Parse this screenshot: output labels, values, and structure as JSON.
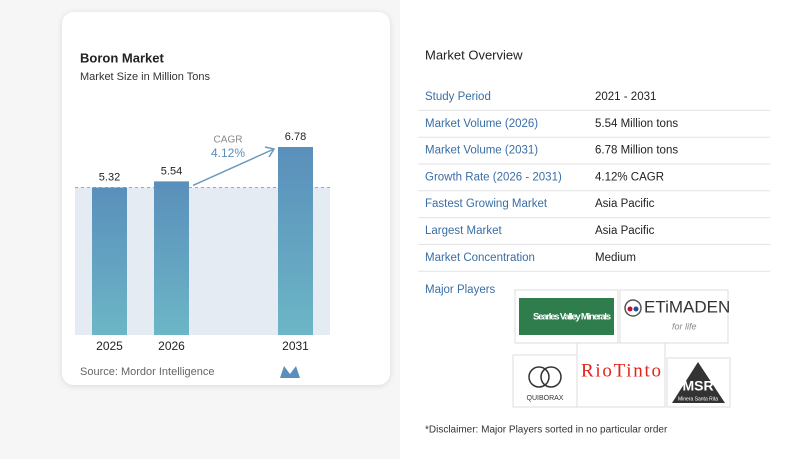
{
  "chart_data": {
    "type": "bar",
    "title": "Boron Market",
    "subtitle": "Market Size in Million Tons",
    "categories": [
      "2025",
      "2026",
      "2031"
    ],
    "values": [
      5.32,
      5.54,
      6.78
    ],
    "annotation": {
      "label": "CAGR",
      "value": "4.12%"
    },
    "source": "Source: Mordor Intelligence"
  },
  "overview": {
    "title": "Market Overview",
    "rows": [
      [
        "Study Period",
        "2021 - 2031"
      ],
      [
        "Market Volume (2026)",
        "5.54 Million tons"
      ],
      [
        "Market Volume (2031)",
        "6.78 Million tons"
      ],
      [
        "Growth Rate (2026 - 2031)",
        "4.12% CAGR"
      ],
      [
        "Fastest Growing Market",
        "Asia Pacific"
      ],
      [
        "Largest Market",
        "Asia Pacific"
      ],
      [
        "Market Concentration",
        "Medium"
      ]
    ],
    "major_players_label": "Major Players",
    "players": [
      {
        "name": "Searles Valley Minerals"
      },
      {
        "name": "ETiMADEN",
        "tagline": "for life"
      },
      {
        "name": "QUIBORAX"
      },
      {
        "name": "RioTinto"
      },
      {
        "name": "MSR",
        "tagline": "Minera Santa Rita"
      }
    ],
    "disclaimer": "*Disclaimer: Major Players sorted in no particular order"
  }
}
